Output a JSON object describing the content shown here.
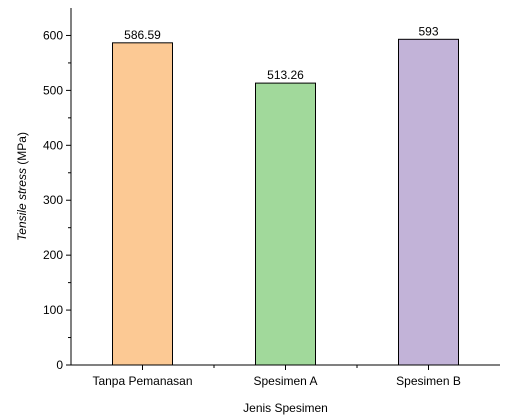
{
  "chart_data": {
    "type": "bar",
    "categories": [
      "Tanpa Pemanasan",
      "Spesimen A",
      "Spesimen B"
    ],
    "values": [
      586.59,
      513.26,
      593
    ],
    "value_labels": [
      "586.59",
      "513.26",
      "593"
    ],
    "colors": [
      "#fcc994",
      "#a1d99b",
      "#c2b3d8"
    ],
    "xlabel": "Jenis Spesimen",
    "ylabel_italic": "Tensile stress",
    "ylabel_unit": " (MPa)",
    "ylim": [
      0,
      650
    ],
    "yticks": [
      0,
      100,
      200,
      300,
      400,
      500,
      600
    ],
    "grid": false,
    "legend": "none"
  }
}
